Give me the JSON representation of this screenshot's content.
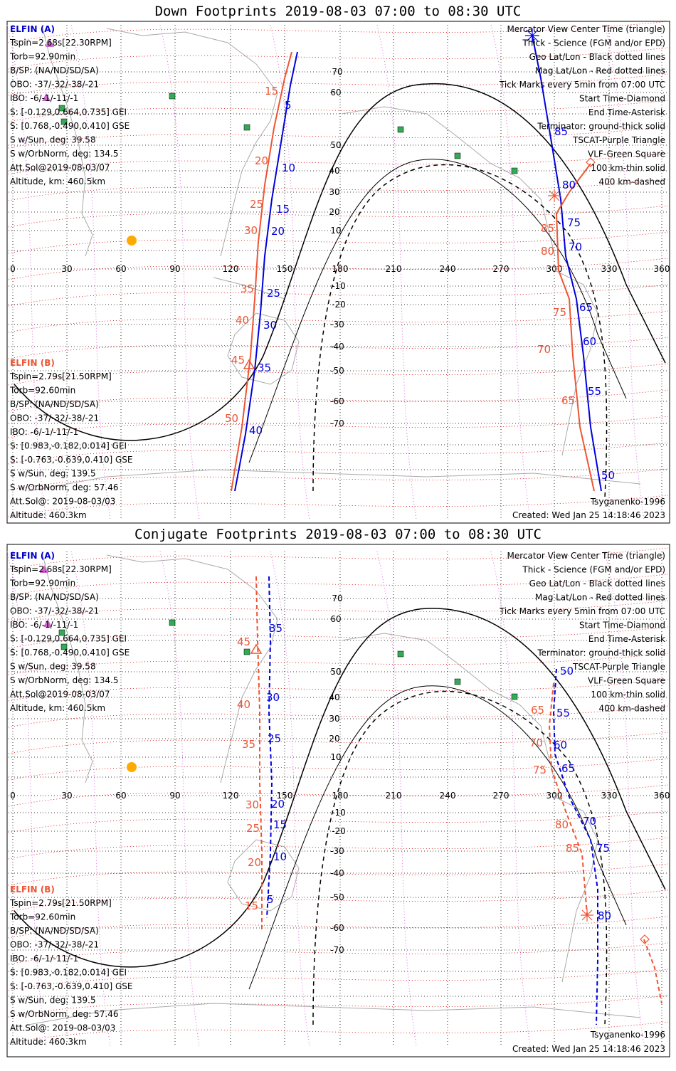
{
  "colors": {
    "elfin_a": "#0000dd",
    "elfin_b": "#ee5533",
    "geo_grid": "#000000",
    "mag_grid": "#dd0000",
    "meridian": "#dd66dd",
    "vlf": "#33aa55",
    "sun": "#ffaa00",
    "coast": "#aaaaaa"
  },
  "axes": {
    "lon_labels": [
      "0",
      "30",
      "60",
      "90",
      "120",
      "150",
      "180",
      "210",
      "240",
      "270",
      "300",
      "330",
      "360"
    ],
    "lat_labels": [
      "70",
      "60",
      "50",
      "40",
      "30",
      "20",
      "10",
      "-10",
      "-20",
      "-30",
      "-40",
      "-50",
      "-60",
      "-70"
    ]
  },
  "left_info": {
    "a_title": "ELFIN (A)",
    "a_lines": [
      "Tspin=2.68s[22.30RPM]",
      "Torb=92.90min",
      "B/SP: (NA/ND/SD/SA)",
      "OBO: -37/-32/-38/-21",
      "IBO: -6/-1/-11/-1",
      "S: [-0.129,0.664,0.735] GEI",
      "S: [0.768,-0.490,0.410] GSE",
      "S w/Sun, deg: 39.58",
      "S w/OrbNorm, deg: 134.5",
      "Att.Sol@2019-08-03/07",
      "Altitude, km: 460.5km"
    ],
    "b_title": "ELFIN (B)",
    "b_lines": [
      "Tspin=2.79s[21.50RPM]",
      "Torb=92.60min",
      "B/SP: (NA/ND/SD/SA)",
      "OBO: -37/-32/-38/-21",
      "IBO: -6/-1/-11/-1",
      "S: [0.983,-0.182,0.014] GEI",
      "S: [-0.763,-0.639,0.410] GSE",
      "S w/Sun, deg: 139.5",
      "S w/OrbNorm, deg: 57.46",
      "Att.Sol@: 2019-08-03/03",
      "Altitude: 460.3km"
    ]
  },
  "legend": [
    {
      "text": "Mercator View Center Time (triangle)",
      "color": "#000000"
    },
    {
      "text": "Thick - Science (FGM and/or EPD)",
      "color": "#000000"
    },
    {
      "text": "Geo Lat/Lon - Black dotted lines",
      "color": "#000000"
    },
    {
      "text": "Mag Lat/Lon - Red dotted lines",
      "color": "#dd0000"
    },
    {
      "text": "Tick Marks every 5min from 07:00 UTC",
      "color": "#000000"
    },
    {
      "text": "Start Time-Diamond",
      "color": "#000000"
    },
    {
      "text": "End Time-Asterisk",
      "color": "#000000"
    },
    {
      "text": "Terminator: ground-thick solid",
      "color": "#000000"
    },
    {
      "text": "TSCAT-Purple Triangle",
      "color": "#cc66cc"
    },
    {
      "text": "VLF-Green Square",
      "color": "#33aa55"
    },
    {
      "text": "100 km-thin solid",
      "color": "#000000"
    },
    {
      "text": "400 km-dashed",
      "color": "#000000"
    }
  ],
  "model": "Tsyganenko-1996",
  "created": "Created: Wed Jan 25 14:18:46 2023",
  "panels": [
    {
      "title": "Down Footprints 2019-08-03 07:00 to 08:30 UTC",
      "a_labels": [
        "5",
        "10",
        "15",
        "20",
        "25",
        "30",
        "35",
        "40",
        "85",
        "80",
        "75",
        "70",
        "65",
        "60",
        "55",
        "50"
      ],
      "b_labels": [
        "15",
        "20",
        "25",
        "30",
        "35",
        "40",
        "45",
        "50",
        "85",
        "80",
        "75",
        "70",
        "65"
      ]
    },
    {
      "title": "Conjugate Footprints 2019-08-03 07:00 to 08:30 UTC",
      "a_labels": [
        "35",
        "30",
        "25",
        "20",
        "15",
        "10",
        "5",
        "50",
        "55",
        "60",
        "65",
        "70",
        "75",
        "80"
      ],
      "b_labels": [
        "45",
        "40",
        "35",
        "30",
        "25",
        "20",
        "15",
        "65",
        "70",
        "75",
        "80",
        "85"
      ]
    }
  ]
}
